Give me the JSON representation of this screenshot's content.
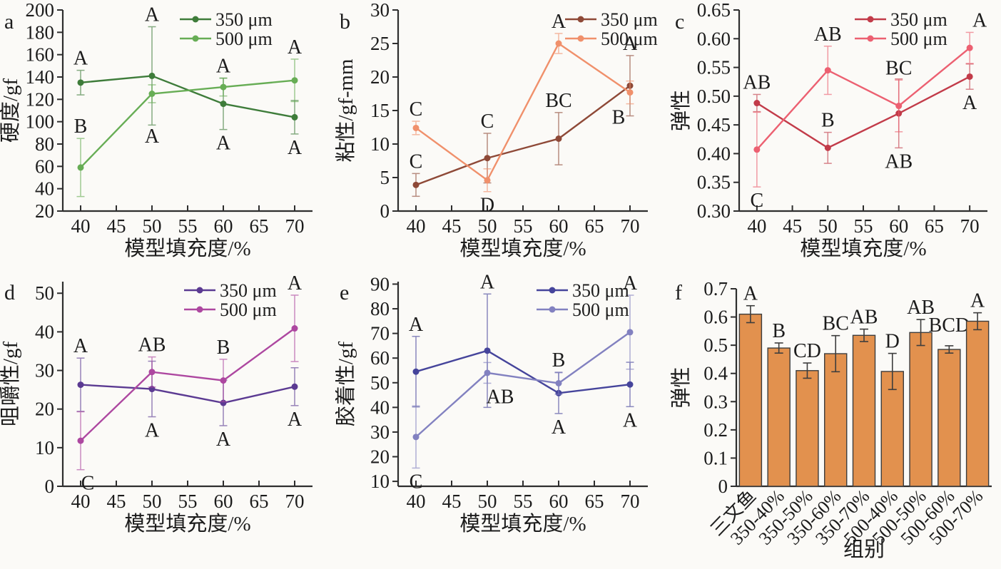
{
  "chart_data": [
    {
      "id": "a",
      "type": "line",
      "panel_label": "a",
      "ylabel": "硬度/gf",
      "xlabel": "模型填充度/%",
      "ylim": [
        20,
        200
      ],
      "yticks": [
        20,
        40,
        60,
        80,
        100,
        120,
        140,
        160,
        180,
        200
      ],
      "ydecimals": 0,
      "xlim": [
        37.5,
        72.5
      ],
      "xticks": [
        40,
        45,
        50,
        55,
        60,
        65,
        70
      ],
      "x": [
        40,
        50,
        60,
        70
      ],
      "legend_position": "top-right",
      "series": [
        {
          "name": "350 μm",
          "color": "#3e7c3a",
          "y": [
            135,
            141,
            116,
            104
          ],
          "err": [
            11,
            44,
            23,
            15
          ],
          "letters": [
            {
              "t": "A",
              "p": "above"
            },
            {
              "t": "A",
              "p": "above"
            },
            {
              "t": "A",
              "p": "below"
            },
            {
              "t": "A",
              "p": "below"
            }
          ]
        },
        {
          "name": "500 μm",
          "color": "#67ad55",
          "y": [
            59,
            125,
            131,
            137
          ],
          "err": [
            26,
            8,
            8,
            19
          ],
          "letters": [
            {
              "t": "B",
              "p": "above"
            },
            {
              "t": "A",
              "p": "below",
              "off": 18
            },
            {
              "t": "A",
              "p": "above"
            },
            {
              "t": "A",
              "p": "above"
            }
          ]
        }
      ]
    },
    {
      "id": "b",
      "type": "line",
      "panel_label": "b",
      "ylabel": "粘性/gf-mm",
      "xlabel": "模型填充度/%",
      "ylim": [
        0,
        30
      ],
      "yticks": [
        0,
        5,
        10,
        15,
        20,
        25,
        30
      ],
      "ydecimals": 0,
      "xlim": [
        37.5,
        72.5
      ],
      "xticks": [
        40,
        45,
        50,
        55,
        60,
        65,
        70
      ],
      "x": [
        40,
        50,
        60,
        70
      ],
      "legend_position": "top-right",
      "series": [
        {
          "name": "350 μm",
          "color": "#8e4937",
          "y": [
            3.9,
            7.9,
            10.8,
            18.7
          ],
          "err": [
            1.7,
            3.7,
            3.9,
            4.5
          ],
          "letters": [
            {
              "t": "C",
              "p": "above"
            },
            {
              "t": "C",
              "p": "above"
            },
            {
              "t": "BC",
              "p": "above"
            },
            {
              "t": "A",
              "p": "above"
            }
          ]
        },
        {
          "name": "500 μm",
          "color": "#f0906b",
          "y": [
            12.4,
            4.6,
            25.0,
            17.7
          ],
          "err": [
            1.0,
            1.7,
            1.5,
            1.7
          ],
          "letters": [
            {
              "t": "C",
              "p": "above"
            },
            {
              "t": "D",
              "p": "below"
            },
            {
              "t": "A",
              "p": "above"
            },
            {
              "t": "B",
              "p": "below",
              "dx": -16
            }
          ]
        }
      ]
    },
    {
      "id": "c",
      "type": "line",
      "panel_label": "c",
      "ylabel": "弹性",
      "xlabel": "模型填充度/%",
      "ylim": [
        0.3,
        0.65
      ],
      "yticks": [
        0.3,
        0.35,
        0.4,
        0.45,
        0.5,
        0.55,
        0.6,
        0.65
      ],
      "ydecimals": 2,
      "xlim": [
        37.5,
        72.5
      ],
      "xticks": [
        40,
        45,
        50,
        55,
        60,
        65,
        70
      ],
      "x": [
        40,
        50,
        60,
        70
      ],
      "legend_position": "top-right",
      "series": [
        {
          "name": "350 μm",
          "color": "#c23b49",
          "y": [
            0.488,
            0.41,
            0.47,
            0.534
          ],
          "err": [
            0.015,
            0.027,
            0.06,
            0.022
          ],
          "letters": [
            {
              "t": "AB",
              "p": "above"
            },
            {
              "t": "B",
              "p": "above"
            },
            {
              "t": "AB",
              "p": "below"
            },
            {
              "t": "A",
              "p": "below"
            }
          ]
        },
        {
          "name": "500 μm",
          "color": "#ec6071",
          "y": [
            0.407,
            0.545,
            0.483,
            0.584
          ],
          "err": [
            0.065,
            0.042,
            0.045,
            0.027
          ],
          "letters": [
            {
              "t": "C",
              "p": "below"
            },
            {
              "t": "AB",
              "p": "above"
            },
            {
              "t": "BC",
              "p": "above"
            },
            {
              "t": "A",
              "p": "above",
              "dx": 14
            }
          ]
        }
      ]
    },
    {
      "id": "d",
      "type": "line",
      "panel_label": "d",
      "ylabel": "咀嚼性/gf",
      "xlabel": "模型填充度/%",
      "ylim": [
        0,
        53
      ],
      "yticks": [
        0,
        10,
        20,
        30,
        40,
        50
      ],
      "ydecimals": 0,
      "xlim": [
        37.5,
        72.5
      ],
      "xticks": [
        40,
        45,
        50,
        55,
        60,
        65,
        70
      ],
      "x": [
        40,
        50,
        60,
        70
      ],
      "legend_position": "top-right",
      "series": [
        {
          "name": "350 μm",
          "color": "#5b3a92",
          "y": [
            26.3,
            25.2,
            21.6,
            25.8
          ],
          "err": [
            6.9,
            7.2,
            5.9,
            4.9
          ],
          "letters": [
            {
              "t": "A",
              "p": "above"
            },
            {
              "t": "A",
              "p": "below"
            },
            {
              "t": "A",
              "p": "below"
            },
            {
              "t": "A",
              "p": "below"
            }
          ]
        },
        {
          "name": "500 μm",
          "color": "#ad47a0",
          "y": [
            11.8,
            29.6,
            27.4,
            40.9
          ],
          "err": [
            7.5,
            3.9,
            5.5,
            8.6
          ],
          "letters": [
            {
              "t": "C",
              "p": "below",
              "dx": 10
            },
            {
              "t": "AB",
              "p": "above"
            },
            {
              "t": "B",
              "p": "above"
            },
            {
              "t": "A",
              "p": "above"
            }
          ]
        }
      ]
    },
    {
      "id": "e",
      "type": "line",
      "panel_label": "e",
      "ylabel": "胶着性/gf",
      "xlabel": "模型填充度/%",
      "ylim": [
        8,
        91
      ],
      "yticks": [
        10,
        20,
        30,
        40,
        50,
        60,
        70,
        80,
        90
      ],
      "ydecimals": 0,
      "xlim": [
        37.5,
        72.5
      ],
      "xticks": [
        40,
        45,
        50,
        55,
        60,
        65,
        70
      ],
      "x": [
        40,
        50,
        60,
        70
      ],
      "legend_position": "top-right",
      "series": [
        {
          "name": "350 μm",
          "color": "#45449b",
          "y": [
            54.5,
            63.0,
            45.8,
            49.3
          ],
          "err": [
            14.3,
            23.0,
            8.3,
            9.0
          ],
          "letters": [
            {
              "t": "A",
              "p": "above"
            },
            {
              "t": "A",
              "p": "above"
            },
            {
              "t": "A",
              "p": "below"
            },
            {
              "t": "A",
              "p": "below"
            }
          ]
        },
        {
          "name": "500 μm",
          "color": "#8281c0",
          "y": [
            28.0,
            54.0,
            49.8,
            70.5
          ],
          "err": [
            12.6,
            4.2,
            4.5,
            15.0
          ],
          "letters": [
            {
              "t": "C",
              "p": "below"
            },
            {
              "t": "AB",
              "p": "below",
              "dx": 18
            },
            {
              "t": "B",
              "p": "above"
            },
            {
              "t": "A",
              "p": "above"
            }
          ]
        }
      ]
    },
    {
      "id": "f",
      "type": "bar",
      "panel_label": "f",
      "ylabel": "弹性",
      "xlabel": "组别",
      "ylim": [
        0,
        0.7
      ],
      "yticks": [
        0,
        0.1,
        0.2,
        0.3,
        0.4,
        0.5,
        0.6,
        0.7
      ],
      "ydecimals": 1,
      "bar_color": "#e2914e",
      "bar_stroke": "#3d3d3d",
      "categories": [
        "三文鱼",
        "350-40%",
        "350-50%",
        "350-60%",
        "350-70%",
        "500-40%",
        "500-50%",
        "500-60%",
        "500-70%"
      ],
      "values": [
        0.61,
        0.49,
        0.41,
        0.47,
        0.535,
        0.407,
        0.545,
        0.485,
        0.585
      ],
      "errors": [
        0.03,
        0.018,
        0.027,
        0.064,
        0.022,
        0.064,
        0.046,
        0.013,
        0.03
      ],
      "letters": [
        {
          "t": "A"
        },
        {
          "t": "B"
        },
        {
          "t": "CD"
        },
        {
          "t": "BC"
        },
        {
          "t": "AB"
        },
        {
          "t": "D"
        },
        {
          "t": "AB"
        },
        {
          "t": "BCD",
          "off": 0.03
        },
        {
          "t": "A"
        }
      ]
    }
  ]
}
